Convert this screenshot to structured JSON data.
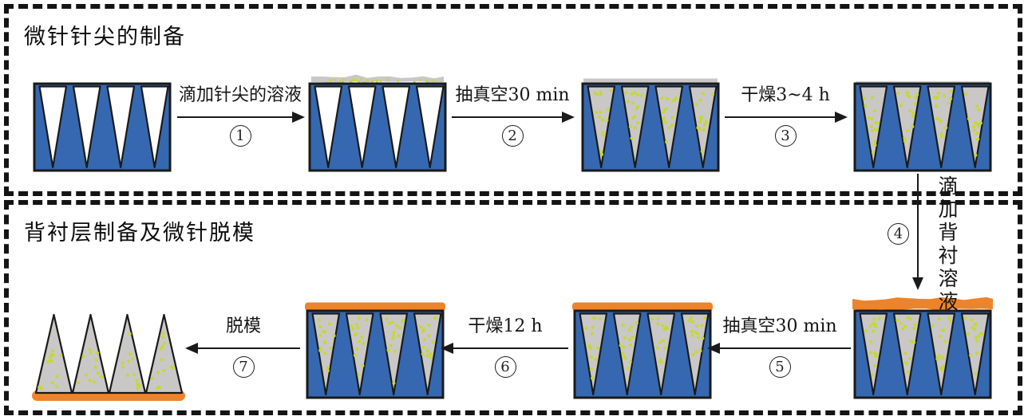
{
  "sections": {
    "top": {
      "title": "微针针尖的制备"
    },
    "bottom": {
      "title": "背衬层制备及微针脱模"
    }
  },
  "steps": [
    {
      "label": "滴加针尖的溶液",
      "circled_number": "1",
      "direction": "right"
    },
    {
      "label": "抽真空30 min",
      "circled_number": "2",
      "direction": "right"
    },
    {
      "label": "干燥3~4 h",
      "circled_number": "3",
      "direction": "right"
    },
    {
      "label": "滴加背衬溶液",
      "circled_number": "4",
      "direction": "down"
    },
    {
      "label": "抽真空30 min",
      "circled_number": "5",
      "direction": "left"
    },
    {
      "label": "干燥12 h",
      "circled_number": "6",
      "direction": "left"
    },
    {
      "label": "脱模",
      "circled_number": "7",
      "direction": "left"
    }
  ],
  "colors": {
    "mold_blue": "#3568b0",
    "needle_gray": "#c9c8c6",
    "dot_yellow": "#c6d832",
    "backing_orange": "#ef8329",
    "outline_black": "#1a1a1a",
    "border_dash": "#141414"
  },
  "molds": [
    {
      "id": "mold-empty",
      "cavity": "empty",
      "top_layer": "none"
    },
    {
      "id": "mold-tip-solution",
      "cavity": "empty",
      "top_layer": "gray-wavy"
    },
    {
      "id": "mold-tip-vacuum",
      "cavity": "filled",
      "top_layer": "gray-strip"
    },
    {
      "id": "mold-tip-dried",
      "cavity": "filled",
      "top_layer": "thin-gray"
    },
    {
      "id": "mold-backing-solution",
      "cavity": "filled",
      "top_layer": "orange-wavy"
    },
    {
      "id": "mold-backing-vacuum",
      "cavity": "filled",
      "top_layer": "orange-bar"
    },
    {
      "id": "mold-backing-dried",
      "cavity": "filled",
      "top_layer": "orange-bar"
    },
    {
      "id": "patch-demolded",
      "cavity": "filled",
      "top_layer": "orange-base",
      "type": "patch"
    }
  ]
}
